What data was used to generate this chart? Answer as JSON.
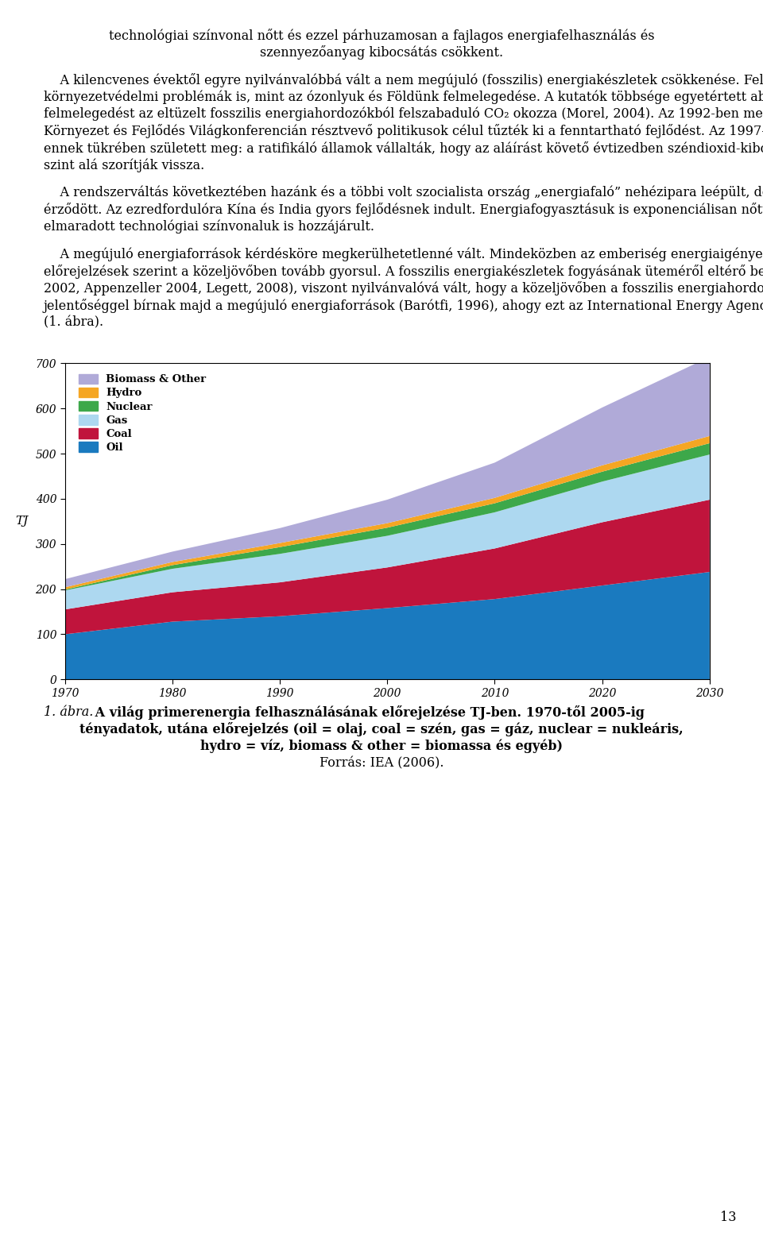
{
  "para0_line1": "technológiai színvonal nőtt és ezzel párhuzamosan a fajlagos energiafelhasználás és",
  "para0_line2": "szennyezőanyag kibocsátás csökkent.",
  "para1": "A kilencvenes évektől egyre nyilvánvalóbbá vált a nem megújuló (fosszilis) energiakészletek csökkenése. Felerősödtek a globális környezetvédelmi problémák is, mint az ózonlyuk és Földünk felmelegedése. A kutatók többsége egyetértett abban, hogy a globális felmelegedést az eltüzelt fosszilis energiahordozókból felszabaduló CO₂ okozza (Morel, 2004). Az 1992-ben megtartott ENSZ Rio de Janeiro-i Környezet és Fejlődés Világkonferencián résztvevő politikusok célul tűzték ki a fenntartható fejlődést. Az 1997-es Kiotói Egyezmény már ennek tükrében született meg: a ratifikáló államok vállalták, hogy az aláírást követő évtizedben széndioxid-kibocsátásukat az 1990-es szint alá szorítják vissza.",
  "para2": "A rendszerváltás következtében hazánk és a többi volt szocialista ország „energiafaló” nehézipara leépült, de globális szinten e hatás nem érződött. Az ezredfordulóra Kína és India gyors fejlődésnek indult. Energiafogyasztásuk is exponenciálisan nőtt, melyhez akkor még elmaradott technológiai színvonaluk is hozzájárult.",
  "para3": "A megújuló energiaforrások kérdésköre megkerülhetetlenné vált. Mindeközben az emberiség energiaigénye exponenciálisan nőtt, ami az előrejelzések szerint a közeljövőben tovább gyorsul. A fosszilis energiakészletek fogyásának üteméről eltérő becslések születtek (Bauquis, 2002, Appenzeller 2004, Legett, 2008), viszont nyilvánvalóvá vált, hogy a közeljövőben a fosszilis energiahordozók mellett egyre nagyobb jelentőséggel bírnak majd a megújuló energiaforrások (Barótfi, 1996), ahogy ezt az International Energy Agency grafikonja is szemlélteti (1. ábra).",
  "chart": {
    "years": [
      1970,
      1980,
      1990,
      2000,
      2010,
      2020,
      2030
    ],
    "oil": [
      100,
      128,
      140,
      158,
      178,
      208,
      238
    ],
    "coal": [
      55,
      65,
      75,
      90,
      112,
      140,
      160
    ],
    "gas": [
      42,
      52,
      63,
      70,
      80,
      90,
      100
    ],
    "nuclear": [
      2,
      8,
      15,
      18,
      20,
      22,
      25
    ],
    "hydro": [
      5,
      7,
      9,
      10,
      12,
      14,
      16
    ],
    "biomass": [
      18,
      23,
      33,
      52,
      78,
      128,
      175
    ],
    "color_oil": "#1a7abf",
    "color_coal": "#c0143c",
    "color_gas": "#add8f0",
    "color_nuclear": "#3da84a",
    "color_hydro": "#f5a623",
    "color_biomass": "#b0aad8",
    "label_oil": "Oil",
    "label_coal": "Coal",
    "label_gas": "Gas",
    "label_nuclear": "Nuclear",
    "label_hydro": "Hydro",
    "label_biomass": "Biomass & Other",
    "ylabel": "TJ",
    "ylim": [
      0,
      700
    ],
    "yticks": [
      0,
      100,
      200,
      300,
      400,
      500,
      600,
      700
    ],
    "xticks": [
      1970,
      1980,
      1990,
      2000,
      2010,
      2020,
      2030
    ]
  },
  "cap_italic": "1. ábra.",
  "cap_bold_1": " A világ primerenergia felhasználásának előrejelzése TJ-ben. 1970-től 2005-ig",
  "cap_bold_2": "tényadatok, utána előrejelzés (oil = olaj, coal = szén, gas = gáz, nuclear = nukleáris,",
  "cap_bold_3": "hydro = víz, biomass & other = biomassa és egyéb)",
  "cap_normal": "Forrás: IEA (2006).",
  "page_number": "13",
  "bg_color": "#ffffff",
  "text_color": "#000000",
  "fs": 11.5,
  "lm": 0.057,
  "rm": 0.943
}
